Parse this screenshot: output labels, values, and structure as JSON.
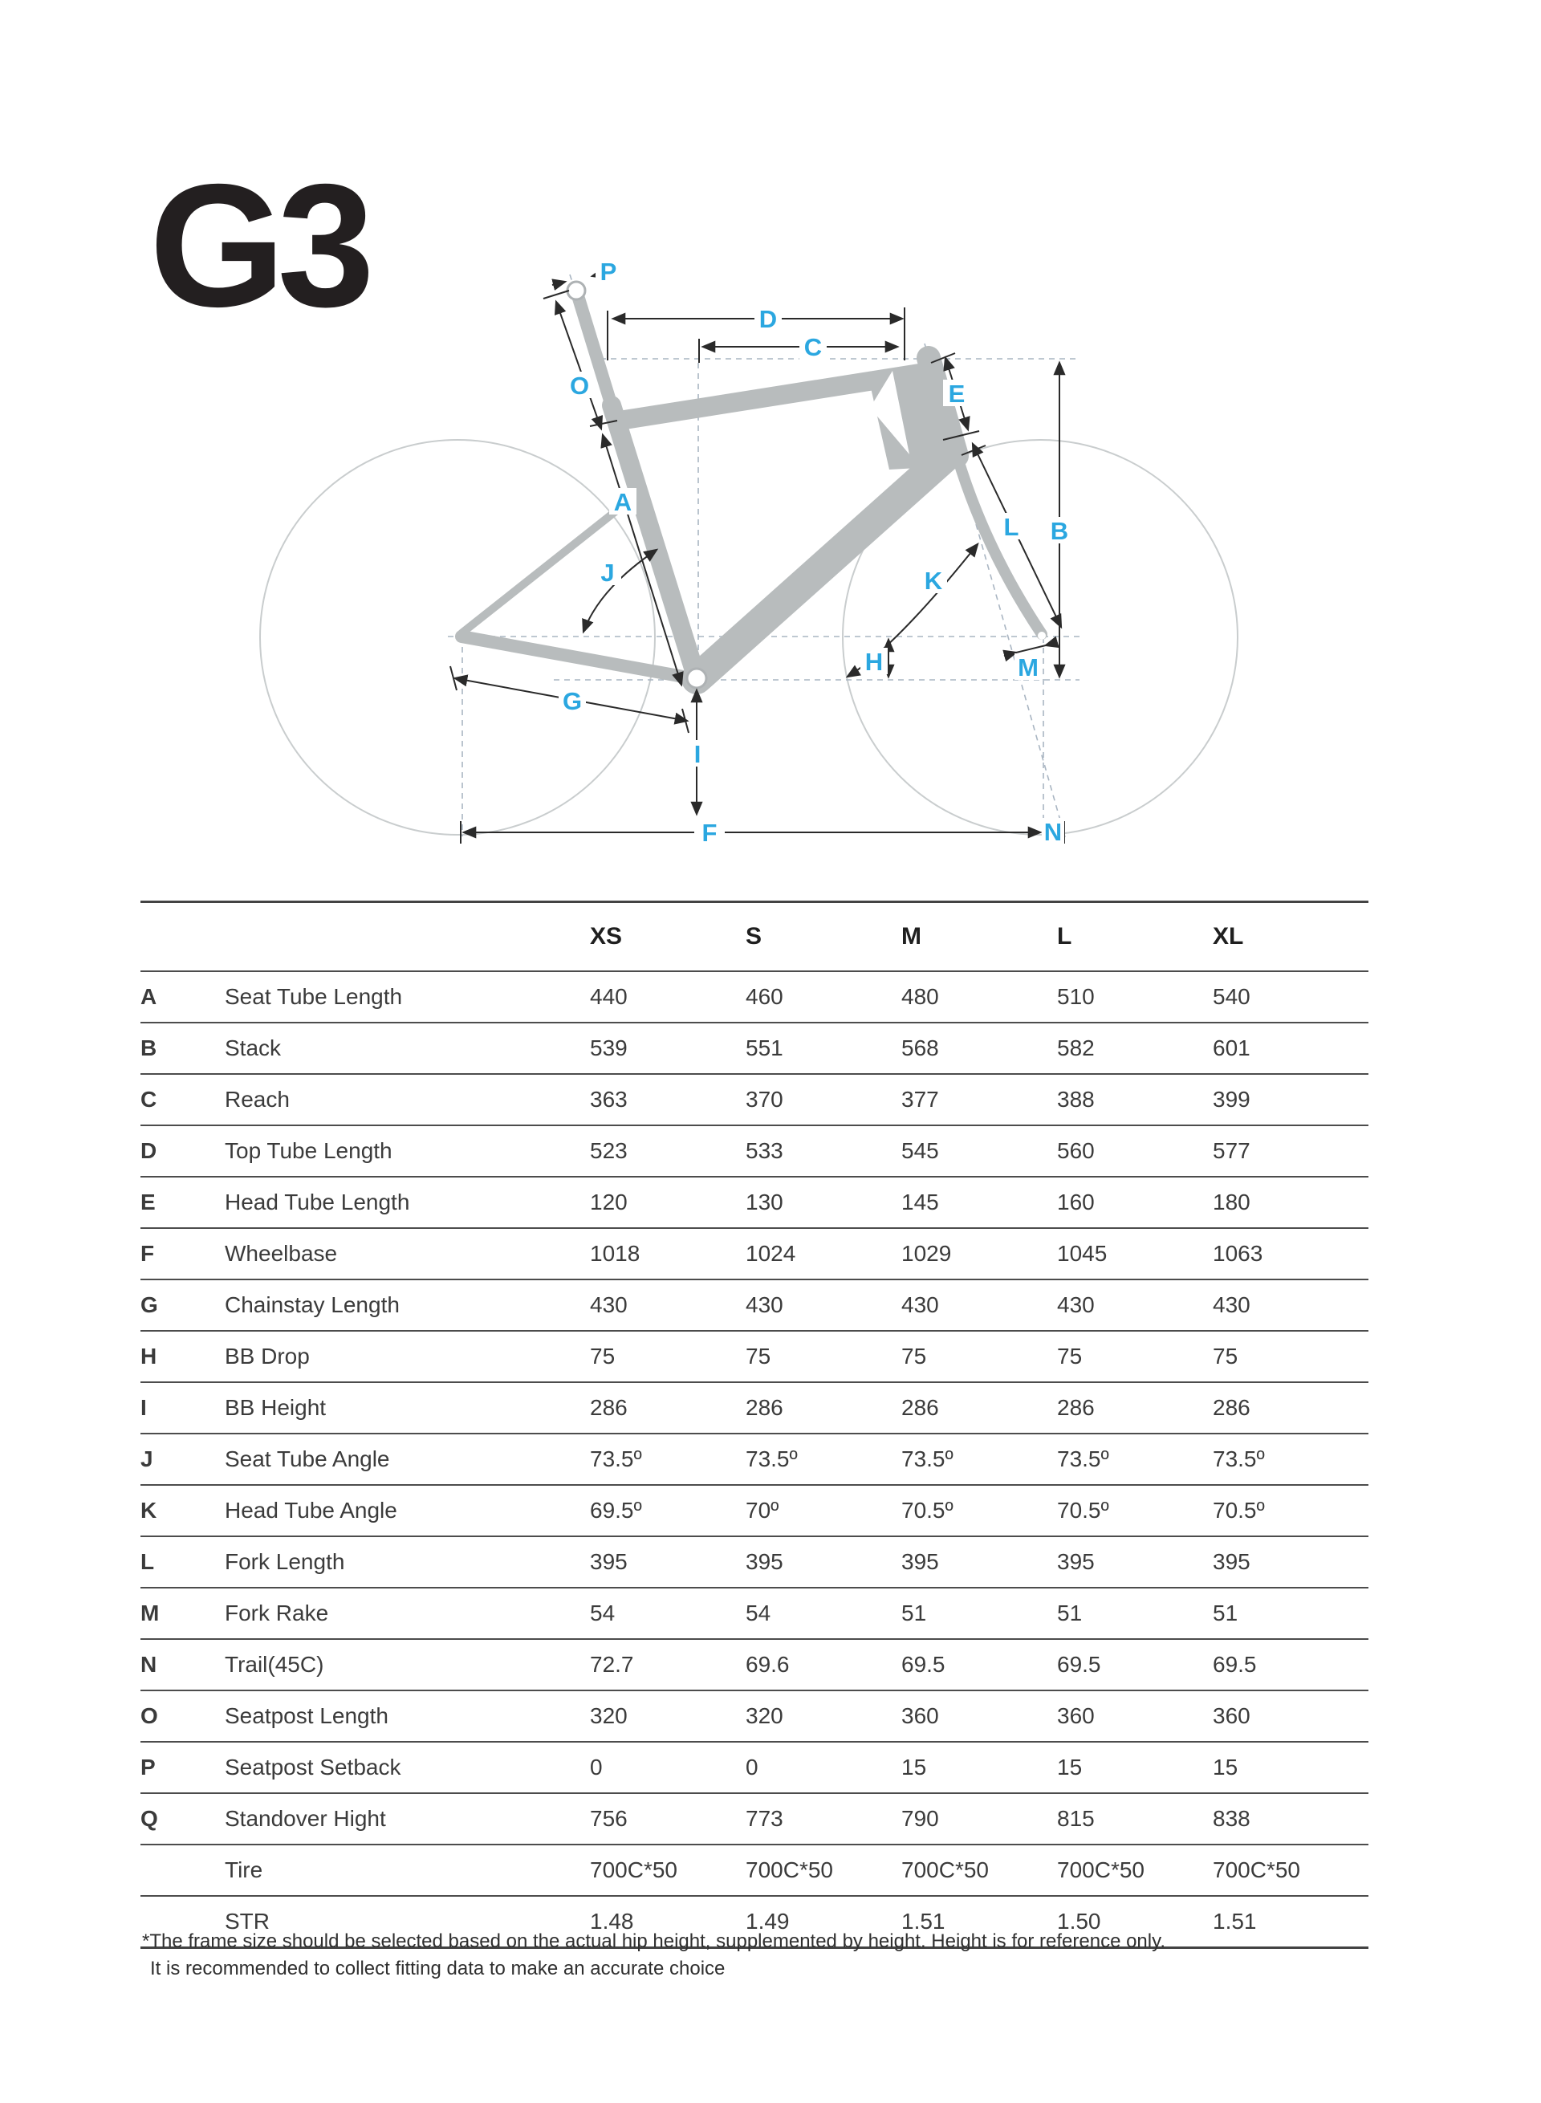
{
  "logo": "G3",
  "diagram": {
    "labels": {
      "a": "A",
      "b": "B",
      "c": "C",
      "d": "D",
      "e": "E",
      "f": "F",
      "g": "G",
      "h": "H",
      "i": "I",
      "j": "J",
      "k": "K",
      "l": "L",
      "m": "M",
      "n": "N",
      "o": "O",
      "p": "P"
    }
  },
  "table": {
    "size_headers": [
      "XS",
      "S",
      "M",
      "L",
      "XL"
    ],
    "rows": [
      {
        "letter": "A",
        "name": "Seat Tube Length",
        "values": [
          "440",
          "460",
          "480",
          "510",
          "540"
        ]
      },
      {
        "letter": "B",
        "name": "Stack",
        "values": [
          "539",
          "551",
          "568",
          "582",
          "601"
        ]
      },
      {
        "letter": "C",
        "name": "Reach",
        "values": [
          "363",
          "370",
          "377",
          "388",
          "399"
        ]
      },
      {
        "letter": "D",
        "name": "Top Tube Length",
        "values": [
          "523",
          "533",
          "545",
          "560",
          "577"
        ]
      },
      {
        "letter": "E",
        "name": "Head Tube Length",
        "values": [
          "120",
          "130",
          "145",
          "160",
          "180"
        ]
      },
      {
        "letter": "F",
        "name": "Wheelbase",
        "values": [
          "1018",
          "1024",
          "1029",
          "1045",
          "1063"
        ]
      },
      {
        "letter": "G",
        "name": "Chainstay Length",
        "values": [
          "430",
          "430",
          "430",
          "430",
          "430"
        ]
      },
      {
        "letter": "H",
        "name": "BB Drop",
        "values": [
          "75",
          "75",
          "75",
          "75",
          "75"
        ]
      },
      {
        "letter": "I",
        "name": "BB Height",
        "values": [
          "286",
          "286",
          "286",
          "286",
          "286"
        ]
      },
      {
        "letter": "J",
        "name": "Seat Tube Angle",
        "values": [
          "73.5º",
          "73.5º",
          "73.5º",
          "73.5º",
          "73.5º"
        ]
      },
      {
        "letter": "K",
        "name": "Head Tube Angle",
        "values": [
          "69.5º",
          "70º",
          "70.5º",
          "70.5º",
          "70.5º"
        ]
      },
      {
        "letter": "L",
        "name": "Fork Length",
        "values": [
          "395",
          "395",
          "395",
          "395",
          "395"
        ]
      },
      {
        "letter": "M",
        "name": "Fork Rake",
        "values": [
          "54",
          "54",
          "51",
          "51",
          "51"
        ]
      },
      {
        "letter": "N",
        "name": "Trail(45C)",
        "values": [
          "72.7",
          "69.6",
          "69.5",
          "69.5",
          "69.5"
        ]
      },
      {
        "letter": "O",
        "name": "Seatpost Length",
        "values": [
          "320",
          "320",
          "360",
          "360",
          "360"
        ]
      },
      {
        "letter": "P",
        "name": "Seatpost Setback",
        "values": [
          "0",
          "0",
          "15",
          "15",
          "15"
        ]
      },
      {
        "letter": "Q",
        "name": "Standover Hight",
        "values": [
          "756",
          "773",
          "790",
          "815",
          "838"
        ]
      },
      {
        "letter": "",
        "name": "Tire",
        "values": [
          "700C*50",
          "700C*50",
          "700C*50",
          "700C*50",
          "700C*50"
        ]
      },
      {
        "letter": "",
        "name": "STR",
        "values": [
          "1.48",
          "1.49",
          "1.51",
          "1.50",
          "1.51"
        ]
      }
    ]
  },
  "footnote": {
    "line1": "*The frame size should be selected based on the actual hip height, supplemented by height. Height is for reference only.",
    "line2": "It is recommended to collect fitting data to make an accurate choice"
  },
  "colors": {
    "accent_blue": "#2ba7e0",
    "frame_gray": "#b8bcbd",
    "wheel_gray": "#c9cdce",
    "dash_gray": "#a9b5c2",
    "dimension_dark": "#2a2a2a",
    "rule_dark": "#4c4c4c"
  }
}
